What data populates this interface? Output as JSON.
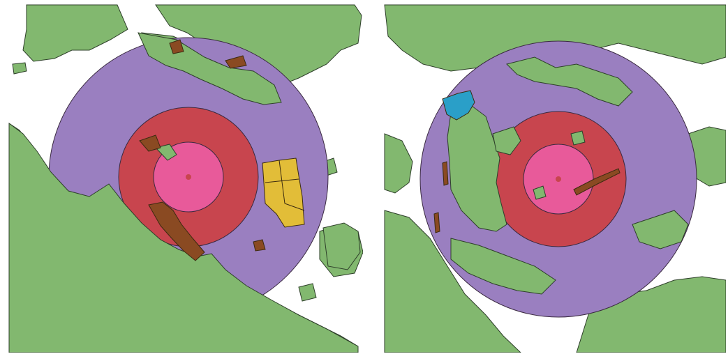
{
  "maps": [
    {
      "id": "left",
      "rings": [
        "outer-buffer",
        "middle-buffer",
        "inner-buffer"
      ],
      "parcels": [
        "brown-parcel",
        "yellow-parcel"
      ]
    },
    {
      "id": "right",
      "rings": [
        "outer-buffer",
        "middle-buffer",
        "inner-buffer"
      ],
      "parcels": [
        "blue-parcel",
        "brown-parcel"
      ]
    }
  ],
  "colors": {
    "land": "#82b86f",
    "outer_buffer": "#9a7fc0",
    "middle_buffer": "#c8454e",
    "inner_buffer": "#e85a9a",
    "center_dot": "#c8454e",
    "brown_parcel": "#8a4a22",
    "yellow_parcel": "#e2bd38",
    "blue_parcel": "#2a9fc8",
    "outline": "#2e3f2a"
  }
}
